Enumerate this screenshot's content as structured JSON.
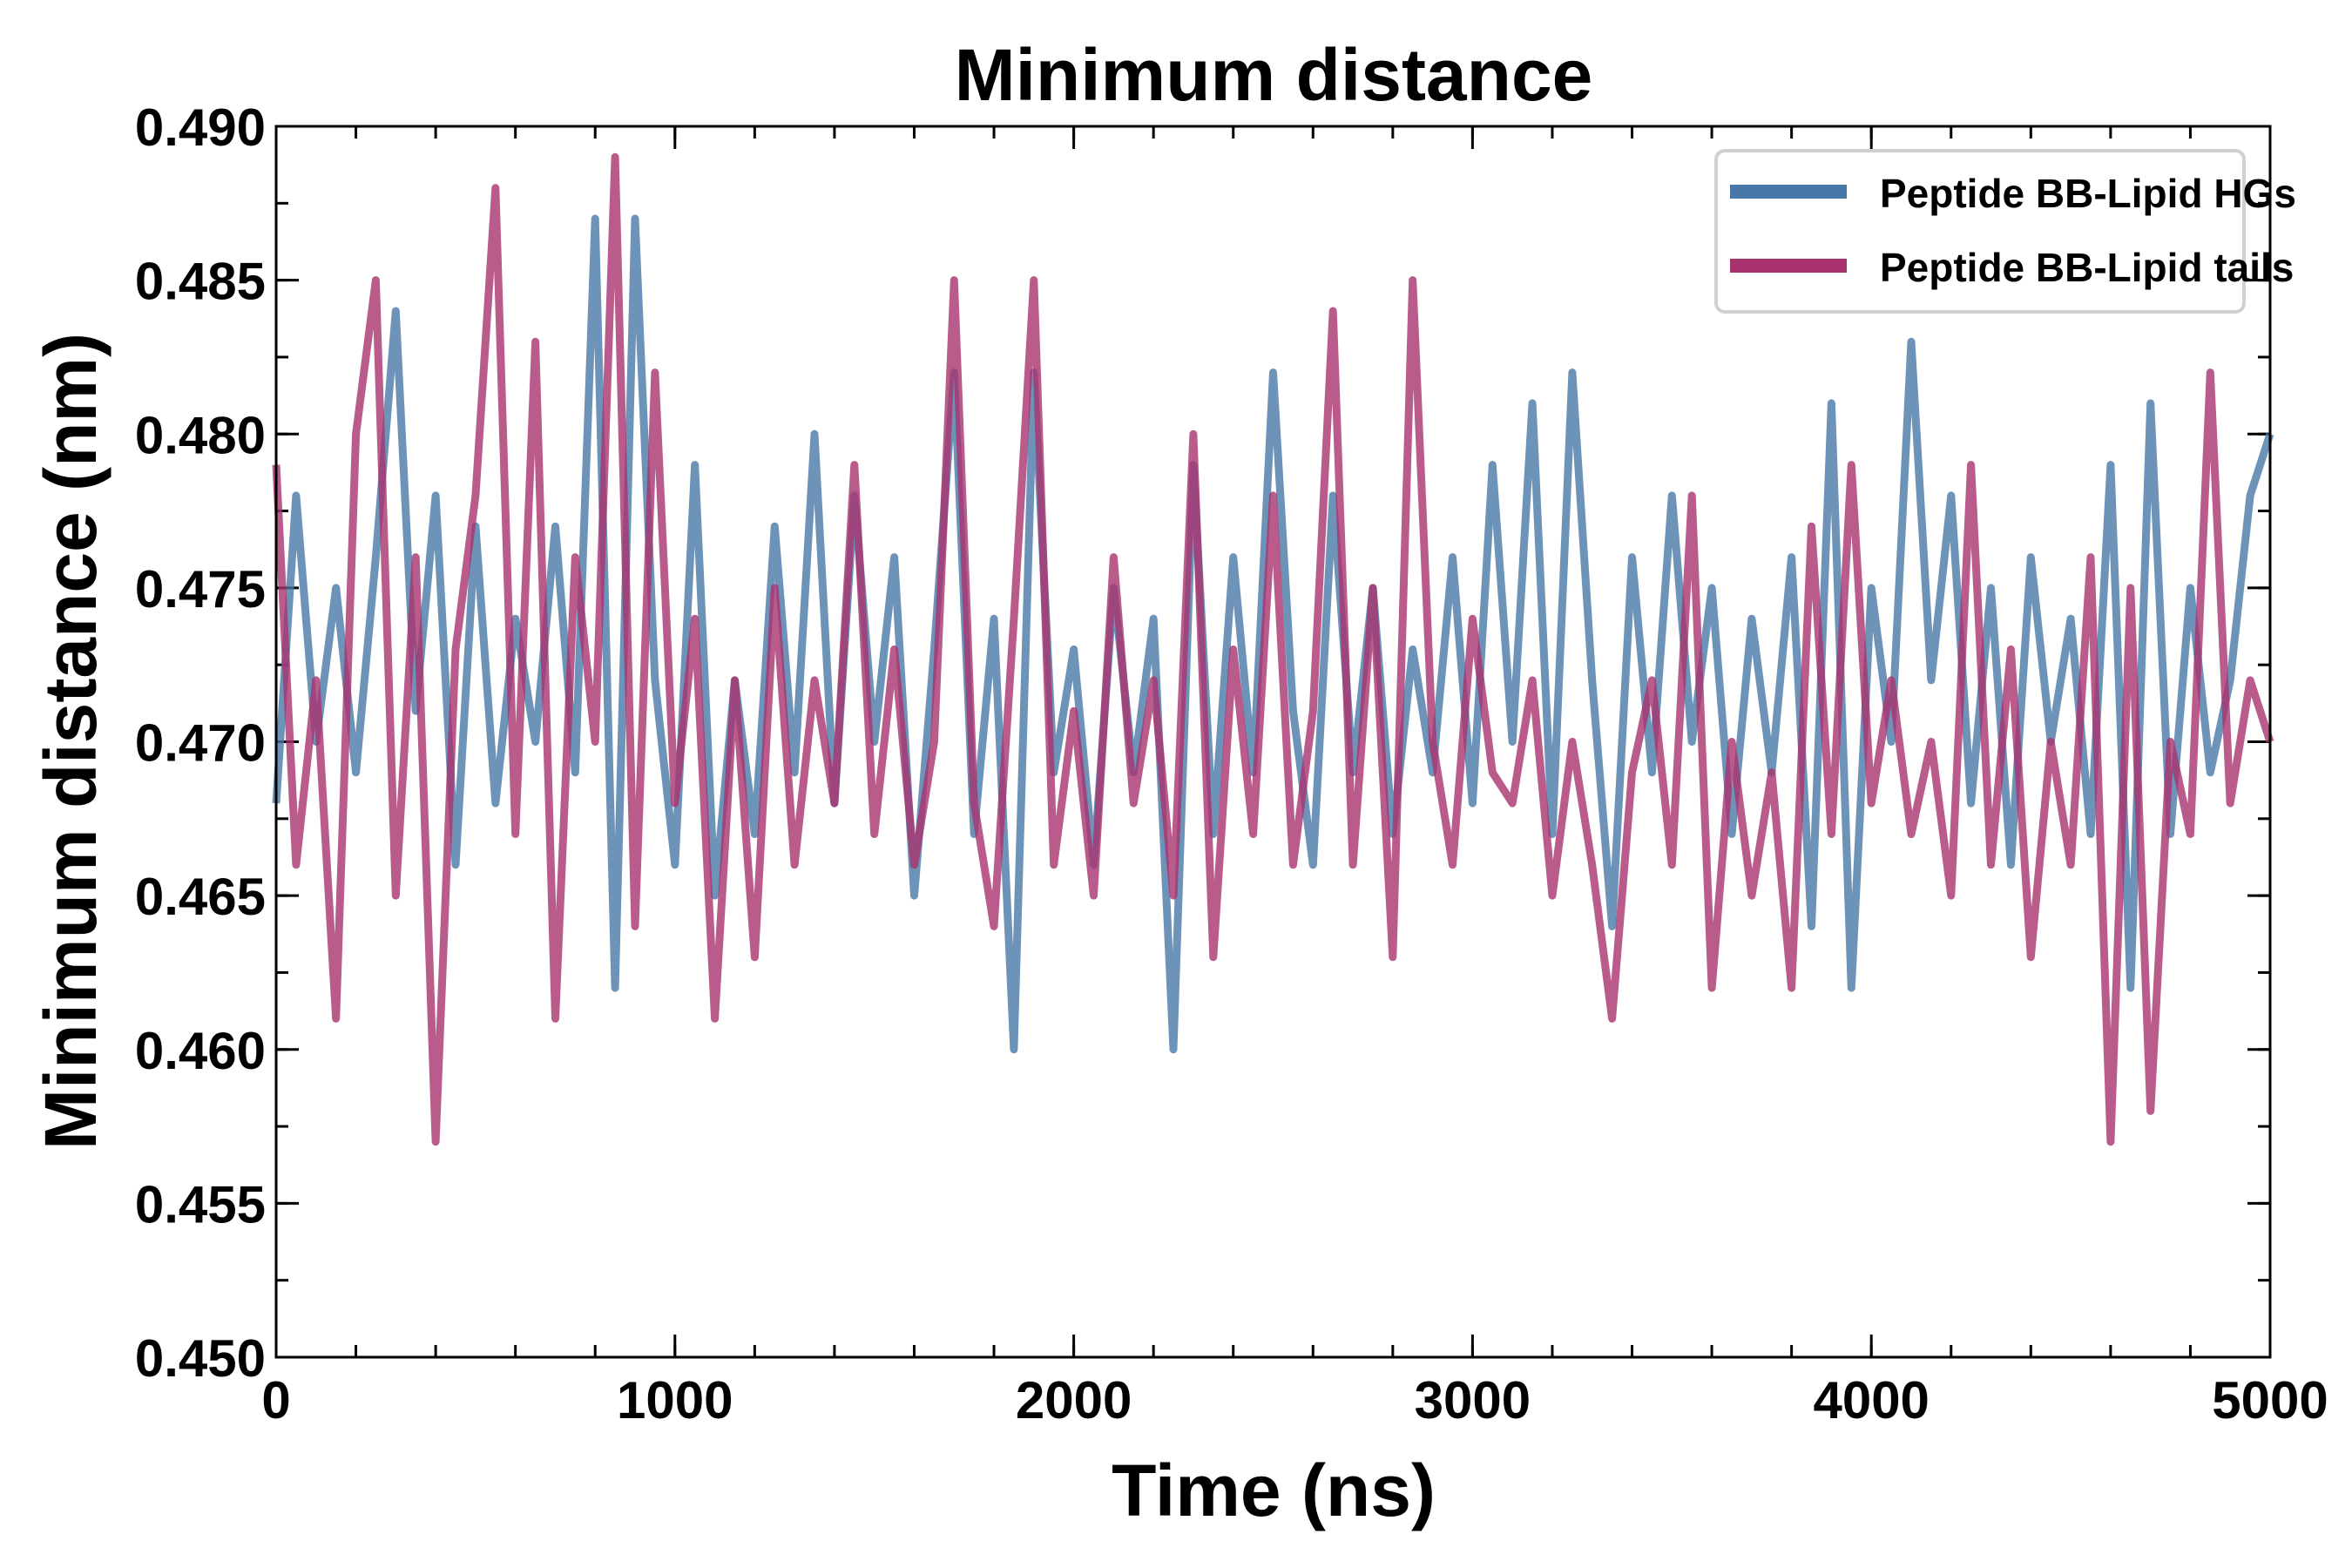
{
  "chart_data": {
    "type": "line",
    "title": "Minimum distance",
    "xlabel": "Time (ns)",
    "ylabel": "Minimum distance (nm)",
    "xlim": [
      0,
      5000
    ],
    "ylim": [
      0.45,
      0.49
    ],
    "x_ticks": [
      0,
      1000,
      2000,
      3000,
      4000,
      5000
    ],
    "x_tick_labels": [
      "0",
      "1000",
      "2000",
      "3000",
      "4000",
      "5000"
    ],
    "x_minor_step": 200,
    "y_ticks": [
      0.45,
      0.455,
      0.46,
      0.465,
      0.47,
      0.475,
      0.48,
      0.485,
      0.49
    ],
    "y_tick_labels": [
      "0.450",
      "0.455",
      "0.460",
      "0.465",
      "0.470",
      "0.475",
      "0.480",
      "0.485",
      "0.490"
    ],
    "y_minor_step": 0.0025,
    "grid": false,
    "legend_position": "top-right",
    "x_start": 0,
    "x_step": 50,
    "series": [
      {
        "name": "Peptide BB-Lipid HGs",
        "color": "#4878a8",
        "values": [
          0.468,
          0.478,
          0.47,
          0.475,
          0.469,
          0.476,
          0.484,
          0.471,
          0.478,
          0.466,
          0.477,
          0.468,
          0.474,
          0.47,
          0.477,
          0.469,
          0.487,
          0.462,
          0.487,
          0.472,
          0.466,
          0.479,
          0.465,
          0.472,
          0.467,
          0.477,
          0.469,
          0.48,
          0.468,
          0.478,
          0.47,
          0.476,
          0.465,
          0.473,
          0.482,
          0.467,
          0.474,
          0.46,
          0.482,
          0.469,
          0.473,
          0.466,
          0.475,
          0.469,
          0.474,
          0.46,
          0.479,
          0.467,
          0.476,
          0.469,
          0.482,
          0.471,
          0.466,
          0.478,
          0.469,
          0.475,
          0.467,
          0.473,
          0.469,
          0.476,
          0.468,
          0.479,
          0.47,
          0.481,
          0.467,
          0.482,
          0.472,
          0.464,
          0.476,
          0.469,
          0.478,
          0.47,
          0.475,
          0.467,
          0.474,
          0.469,
          0.476,
          0.464,
          0.481,
          0.462,
          0.475,
          0.47,
          0.483,
          0.472,
          0.478,
          0.468,
          0.475,
          0.466,
          0.476,
          0.47,
          0.474,
          0.467,
          0.479,
          0.462,
          0.481,
          0.467,
          0.475,
          0.469,
          0.472,
          0.478,
          0.48
        ]
      },
      {
        "name": "Peptide BB-Lipid tails",
        "color": "#a8336e",
        "values": [
          0.479,
          0.466,
          0.472,
          0.461,
          0.48,
          0.485,
          0.465,
          0.476,
          0.457,
          0.473,
          0.478,
          0.488,
          0.467,
          0.483,
          0.461,
          0.476,
          0.47,
          0.489,
          0.464,
          0.482,
          0.468,
          0.474,
          0.461,
          0.472,
          0.463,
          0.475,
          0.466,
          0.472,
          0.468,
          0.479,
          0.467,
          0.473,
          0.466,
          0.47,
          0.485,
          0.468,
          0.464,
          0.474,
          0.485,
          0.466,
          0.471,
          0.465,
          0.476,
          0.468,
          0.472,
          0.465,
          0.48,
          0.463,
          0.473,
          0.467,
          0.478,
          0.466,
          0.471,
          0.484,
          0.466,
          0.475,
          0.463,
          0.485,
          0.47,
          0.466,
          0.474,
          0.469,
          0.468,
          0.472,
          0.465,
          0.47,
          0.466,
          0.461,
          0.469,
          0.472,
          0.466,
          0.478,
          0.462,
          0.47,
          0.465,
          0.469,
          0.462,
          0.477,
          0.467,
          0.479,
          0.468,
          0.472,
          0.467,
          0.47,
          0.465,
          0.479,
          0.466,
          0.473,
          0.463,
          0.47,
          0.466,
          0.476,
          0.457,
          0.475,
          0.458,
          0.47,
          0.467,
          0.482,
          0.468,
          0.472,
          0.47
        ]
      }
    ]
  }
}
